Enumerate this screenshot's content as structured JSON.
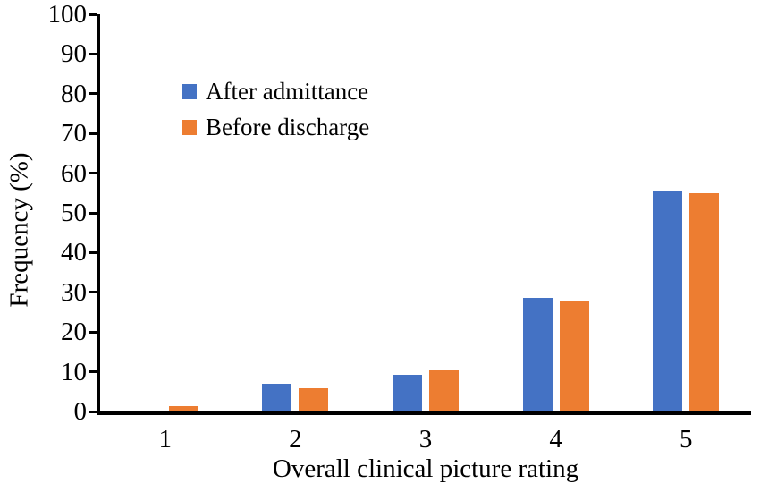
{
  "chart_data": {
    "type": "bar",
    "title": "",
    "categories": [
      "1",
      "2",
      "3",
      "4",
      "5"
    ],
    "series": [
      {
        "name": "After admittance",
        "color": "#4472C4",
        "values": [
          0.3,
          7.0,
          9.2,
          28.5,
          55.3
        ]
      },
      {
        "name": "Before discharge",
        "color": "#ED7D31",
        "values": [
          1.4,
          5.8,
          10.4,
          27.8,
          55.0
        ]
      }
    ],
    "xlabel": "Overall clinical picture rating",
    "ylabel": "Frequency (%)",
    "ylim": [
      0,
      100
    ],
    "yticks": [
      0,
      10,
      20,
      30,
      40,
      50,
      60,
      70,
      80,
      90,
      100
    ],
    "grid": false,
    "legend_position": "upper-left-inside",
    "axis_color": "#000000",
    "background": "#ffffff"
  }
}
